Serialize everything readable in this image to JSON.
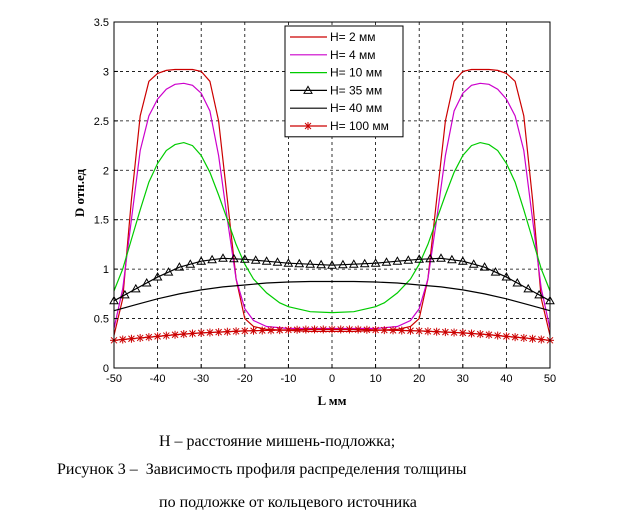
{
  "chart_data": {
    "type": "line",
    "xlabel": "L мм",
    "ylabel": "D отн.ед",
    "xlim": [
      -50,
      50
    ],
    "ylim": [
      0,
      3.5
    ],
    "xticks": [
      "-50",
      "-40",
      "-30",
      "-20",
      "-10",
      "0",
      "10",
      "20",
      "30",
      "40",
      "50"
    ],
    "yticks": [
      "0",
      "0.5",
      "1",
      "1.5",
      "2",
      "2.5",
      "3",
      "3.5"
    ],
    "grid": true,
    "legend_position": "top-center",
    "legend": [
      {
        "label": "H= 2    мм",
        "color": "#cc0000",
        "marker": "none"
      },
      {
        "label": "H= 4    мм",
        "color": "#cc00cc",
        "marker": "none"
      },
      {
        "label": "H= 10  мм",
        "color": "#00cc00",
        "marker": "none"
      },
      {
        "label": "H= 35  мм",
        "color": "#000000",
        "marker": "triangle"
      },
      {
        "label": "H= 40  мм",
        "color": "#000000",
        "marker": "none"
      },
      {
        "label": "H= 100 мм",
        "color": "#cc0000",
        "marker": "star"
      }
    ],
    "series": [
      {
        "name": "H= 2    мм",
        "color": "#cc0000",
        "x": [
          -50,
          -48,
          -46,
          -44,
          -42,
          -40,
          -38,
          -36,
          -34,
          -32,
          -30,
          -28,
          -26,
          -24,
          -22,
          -20,
          -18,
          -15,
          -10,
          -5,
          0,
          5,
          10,
          15,
          18,
          20,
          22,
          24,
          26,
          28,
          30,
          32,
          34,
          36,
          38,
          40,
          42,
          44,
          46,
          48,
          50
        ],
        "y": [
          0.33,
          0.7,
          1.7,
          2.55,
          2.9,
          2.98,
          3.01,
          3.02,
          3.02,
          3.02,
          3.0,
          2.9,
          2.5,
          1.7,
          0.9,
          0.5,
          0.42,
          0.39,
          0.38,
          0.37,
          0.37,
          0.37,
          0.38,
          0.39,
          0.42,
          0.5,
          0.9,
          1.7,
          2.5,
          2.9,
          3.0,
          3.02,
          3.02,
          3.02,
          3.01,
          2.98,
          2.9,
          2.55,
          1.7,
          0.7,
          0.33
        ]
      },
      {
        "name": "H= 4    мм",
        "color": "#cc00cc",
        "x": [
          -50,
          -48,
          -46,
          -44,
          -42,
          -40,
          -38,
          -36,
          -34,
          -32,
          -30,
          -28,
          -26,
          -24,
          -22,
          -20,
          -18,
          -15,
          -10,
          -5,
          0,
          5,
          10,
          15,
          18,
          20,
          22,
          24,
          26,
          28,
          30,
          32,
          34,
          36,
          38,
          40,
          42,
          44,
          46,
          48,
          50
        ],
        "y": [
          0.4,
          0.8,
          1.5,
          2.2,
          2.55,
          2.72,
          2.82,
          2.87,
          2.88,
          2.86,
          2.78,
          2.6,
          2.15,
          1.5,
          0.9,
          0.6,
          0.48,
          0.42,
          0.4,
          0.4,
          0.4,
          0.4,
          0.4,
          0.42,
          0.48,
          0.6,
          0.9,
          1.5,
          2.15,
          2.6,
          2.78,
          2.86,
          2.88,
          2.87,
          2.82,
          2.72,
          2.55,
          2.2,
          1.5,
          0.8,
          0.4
        ]
      },
      {
        "name": "H= 10  мм",
        "color": "#00cc00",
        "x": [
          -50,
          -48,
          -46,
          -44,
          -42,
          -40,
          -38,
          -36,
          -34,
          -32,
          -30,
          -28,
          -26,
          -24,
          -22,
          -20,
          -18,
          -15,
          -12,
          -10,
          -5,
          0,
          5,
          10,
          12,
          15,
          18,
          20,
          22,
          24,
          26,
          28,
          30,
          32,
          34,
          36,
          38,
          40,
          42,
          44,
          46,
          48,
          50
        ],
        "y": [
          0.78,
          1.0,
          1.3,
          1.6,
          1.88,
          2.07,
          2.2,
          2.26,
          2.28,
          2.25,
          2.15,
          1.98,
          1.75,
          1.5,
          1.25,
          1.05,
          0.9,
          0.76,
          0.66,
          0.62,
          0.57,
          0.56,
          0.57,
          0.62,
          0.66,
          0.76,
          0.9,
          1.05,
          1.25,
          1.5,
          1.75,
          1.98,
          2.15,
          2.25,
          2.28,
          2.26,
          2.2,
          2.07,
          1.88,
          1.6,
          1.3,
          1.0,
          0.78
        ]
      },
      {
        "name": "H= 35  мм",
        "color": "#000000",
        "x": [
          -50,
          -45,
          -40,
          -35,
          -30,
          -25,
          -20,
          -15,
          -10,
          -5,
          0,
          5,
          10,
          15,
          20,
          25,
          30,
          35,
          40,
          45,
          50
        ],
        "y": [
          0.68,
          0.8,
          0.92,
          1.02,
          1.08,
          1.11,
          1.1,
          1.08,
          1.06,
          1.05,
          1.04,
          1.05,
          1.06,
          1.08,
          1.1,
          1.11,
          1.08,
          1.02,
          0.92,
          0.8,
          0.68
        ]
      },
      {
        "name": "H= 40  мм",
        "color": "#000000",
        "x": [
          -50,
          -45,
          -40,
          -35,
          -30,
          -25,
          -20,
          -15,
          -10,
          -5,
          0,
          5,
          10,
          15,
          20,
          25,
          30,
          35,
          40,
          45,
          50
        ],
        "y": [
          0.58,
          0.64,
          0.7,
          0.75,
          0.79,
          0.82,
          0.84,
          0.86,
          0.87,
          0.875,
          0.875,
          0.875,
          0.87,
          0.86,
          0.84,
          0.82,
          0.79,
          0.75,
          0.7,
          0.64,
          0.58
        ]
      },
      {
        "name": "H= 100 мм",
        "color": "#cc0000",
        "x": [
          -50,
          -45,
          -40,
          -35,
          -30,
          -25,
          -20,
          -15,
          -10,
          -5,
          0,
          5,
          10,
          15,
          20,
          25,
          30,
          35,
          40,
          45,
          50
        ],
        "y": [
          0.28,
          0.3,
          0.32,
          0.34,
          0.355,
          0.365,
          0.375,
          0.38,
          0.385,
          0.39,
          0.39,
          0.39,
          0.385,
          0.38,
          0.375,
          0.365,
          0.355,
          0.34,
          0.32,
          0.3,
          0.28
        ]
      }
    ]
  },
  "caption": {
    "line1": "Н – расстояние мишень-подложка;",
    "line2": "Рисунок 3 –  Зависимость профиля распределения толщины",
    "line3": "по подложке от кольцевого источника"
  }
}
